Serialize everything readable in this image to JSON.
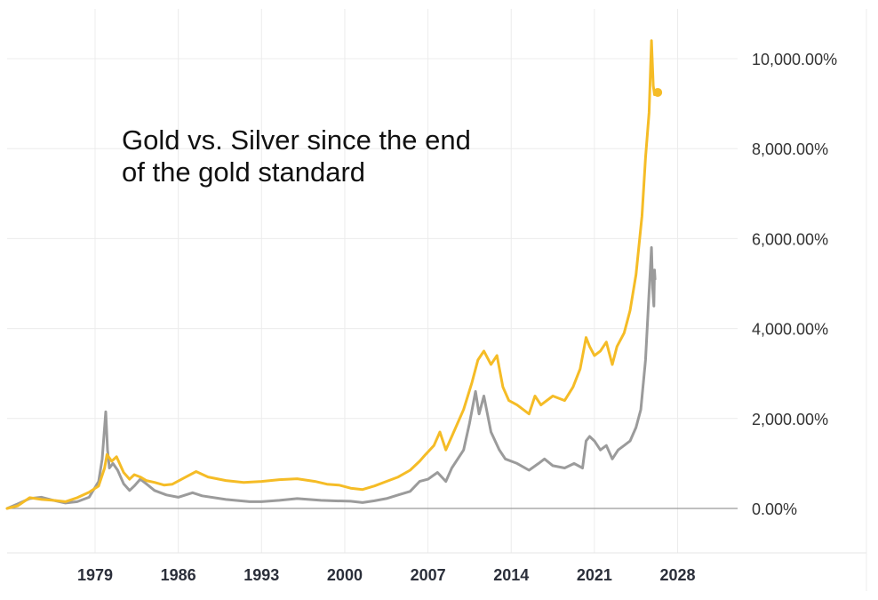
{
  "chart_data": {
    "type": "line",
    "title": "Gold vs. Silver since the end of the gold standard",
    "xlabel": "",
    "ylabel": "",
    "x_ticks": [
      "1979",
      "1986",
      "1993",
      "2000",
      "2007",
      "2014",
      "2021",
      "2028"
    ],
    "y_ticks": [
      "0.00%",
      "2,000.00%",
      "4,000.00%",
      "6,000.00%",
      "8,000.00%",
      "10,000.00%"
    ],
    "xlim": [
      1971.6,
      2030.5
    ],
    "ylim": [
      -1000,
      10600
    ],
    "grid": true,
    "legend": "none",
    "series": [
      {
        "color": "#F5BC26",
        "x": [
          1971.6,
          1972.5,
          1973.5,
          1974.5,
          1975.5,
          1976.5,
          1977.5,
          1978.5,
          1979.3,
          1979.8,
          1980.0,
          1980.4,
          1980.8,
          1981.4,
          1981.9,
          1982.3,
          1982.8,
          1983.3,
          1984.0,
          1984.8,
          1985.5,
          1986.5,
          1987.5,
          1988.5,
          1990.0,
          1991.5,
          1993.0,
          1994.5,
          1996.0,
          1997.5,
          1998.5,
          1999.5,
          2000.5,
          2001.5,
          2002.5,
          2003.5,
          2004.5,
          2005.5,
          2006.3,
          2006.8,
          2007.5,
          2008.0,
          2008.5,
          2009.0,
          2010.0,
          2010.7,
          2011.2,
          2011.7,
          2012.3,
          2012.8,
          2013.3,
          2013.8,
          2014.5,
          2015.5,
          2016.0,
          2016.5,
          2017.5,
          2018.5,
          2019.2,
          2019.8,
          2020.3,
          2020.6,
          2021.0,
          2021.5,
          2022.0,
          2022.5,
          2022.9,
          2023.5,
          2024.0,
          2024.5,
          2025.0,
          2025.3,
          2025.6,
          2025.8,
          2025.95,
          2026.05,
          2026.1
        ],
        "y": [
          0,
          60,
          240,
          200,
          180,
          150,
          240,
          360,
          500,
          900,
          1200,
          1050,
          1150,
          800,
          650,
          750,
          700,
          620,
          580,
          520,
          540,
          680,
          820,
          700,
          620,
          580,
          600,
          640,
          660,
          600,
          540,
          520,
          450,
          420,
          500,
          600,
          700,
          850,
          1050,
          1200,
          1400,
          1700,
          1300,
          1600,
          2200,
          2800,
          3300,
          3500,
          3200,
          3400,
          2700,
          2400,
          2300,
          2100,
          2500,
          2300,
          2500,
          2400,
          2700,
          3100,
          3800,
          3600,
          3400,
          3500,
          3700,
          3200,
          3600,
          3900,
          4400,
          5200,
          6500,
          7800,
          8800,
          10400,
          9400,
          9200,
          9250
        ]
      },
      {
        "color": "#9B9B9B",
        "x": [
          1971.6,
          1972.5,
          1973.5,
          1974.5,
          1975.5,
          1976.5,
          1977.5,
          1978.5,
          1979.3,
          1979.6,
          1979.9,
          1980.05,
          1980.2,
          1980.5,
          1980.9,
          1981.4,
          1981.9,
          1982.3,
          1982.8,
          1983.3,
          1984.0,
          1985.0,
          1986.0,
          1987.2,
          1988.0,
          1990.0,
          1992.0,
          1993.0,
          1994.5,
          1996.0,
          1998.0,
          1999.0,
          2000.5,
          2001.5,
          2002.5,
          2003.5,
          2004.5,
          2005.5,
          2006.3,
          2007.0,
          2007.8,
          2008.5,
          2009.0,
          2010.0,
          2010.5,
          2011.0,
          2011.3,
          2011.7,
          2012.3,
          2013.0,
          2013.5,
          2014.5,
          2015.5,
          2016.3,
          2016.8,
          2017.5,
          2018.5,
          2019.3,
          2020.0,
          2020.3,
          2020.6,
          2021.0,
          2021.5,
          2022.0,
          2022.5,
          2023.0,
          2023.5,
          2024.0,
          2024.5,
          2024.9,
          2025.3,
          2025.6,
          2025.8,
          2025.9,
          2026.0,
          2026.05,
          2026.1
        ],
        "y": [
          0,
          100,
          220,
          250,
          180,
          120,
          150,
          250,
          600,
          1100,
          2150,
          1300,
          900,
          1000,
          850,
          550,
          400,
          500,
          650,
          550,
          400,
          300,
          250,
          350,
          280,
          200,
          150,
          150,
          180,
          220,
          180,
          170,
          160,
          130,
          170,
          220,
          300,
          380,
          600,
          650,
          800,
          600,
          900,
          1300,
          1900,
          2600,
          2100,
          2500,
          1700,
          1300,
          1100,
          1000,
          850,
          1000,
          1100,
          950,
          900,
          1000,
          900,
          1500,
          1600,
          1500,
          1300,
          1400,
          1100,
          1300,
          1400,
          1500,
          1800,
          2200,
          3300,
          4800,
          5800,
          4900,
          4500,
          5300,
          5100
        ]
      }
    ]
  }
}
